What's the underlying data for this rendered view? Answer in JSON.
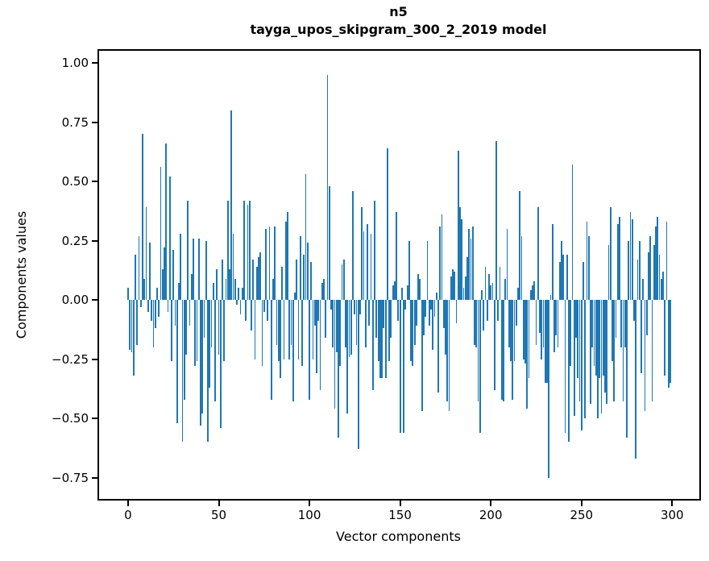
{
  "figure": {
    "title_line1": "n5",
    "title_line2": "tayga_upos_skipgram_300_2_2019 model",
    "xlabel": "Vector components",
    "ylabel": "Components values"
  },
  "chart_data": {
    "type": "bar",
    "title": "n5",
    "subtitle": "tayga_upos_skipgram_300_2_2019 model",
    "xlabel": "Vector components",
    "ylabel": "Components values",
    "bar_color": "#1f77b4",
    "axis_color": "#000000",
    "background_color": "#ffffff",
    "grid": false,
    "legend": "none",
    "xlim": [
      -15.95,
      314.95
    ],
    "ylim": [
      -0.84,
      1.051
    ],
    "x_ticks": [
      0,
      50,
      100,
      150,
      200,
      250,
      300
    ],
    "x_tick_labels": [
      "0",
      "50",
      "100",
      "150",
      "200",
      "250",
      "300"
    ],
    "y_ticks": [
      1.0,
      0.75,
      0.5,
      0.25,
      0.0,
      -0.25,
      -0.5,
      -0.75
    ],
    "y_tick_labels": [
      "1.00",
      "0.75",
      "0.50",
      "0.25",
      "0.00",
      "−0.25",
      "−0.50",
      "−0.75"
    ],
    "bar_rel_width": 0.8,
    "values": [
      0.05,
      -0.21,
      -0.22,
      -0.32,
      0.19,
      -0.19,
      0.27,
      -0.03,
      0.7,
      0.09,
      0.39,
      -0.05,
      0.24,
      -0.09,
      -0.2,
      -0.12,
      0.05,
      -0.07,
      0.56,
      0.13,
      0.22,
      0.66,
      -0.05,
      0.52,
      -0.26,
      0.21,
      -0.11,
      -0.52,
      0.07,
      0.28,
      -0.6,
      -0.42,
      -0.23,
      0.42,
      -0.11,
      0.11,
      0.26,
      -0.28,
      -0.26,
      0.26,
      -0.53,
      -0.48,
      -0.16,
      0.25,
      -0.6,
      -0.37,
      -0.2,
      0.07,
      -0.43,
      0.13,
      -0.23,
      -0.54,
      0.17,
      -0.26,
      0.09,
      0.42,
      0.13,
      0.8,
      0.28,
      0.09,
      -0.02,
      0.05,
      -0.06,
      0.05,
      0.42,
      -0.09,
      0.4,
      0.42,
      -0.13,
      0.17,
      -0.25,
      0.14,
      0.18,
      0.2,
      -0.28,
      -0.05,
      0.3,
      -0.09,
      0.31,
      -0.42,
      0.09,
      0.31,
      -0.19,
      -0.26,
      -0.33,
      0.14,
      -0.25,
      0.33,
      0.37,
      -0.25,
      -0.19,
      -0.43,
      0.03,
      0.17,
      -0.25,
      0.27,
      -0.28,
      0.19,
      0.53,
      0.24,
      -0.42,
      0.16,
      -0.25,
      -0.11,
      -0.31,
      -0.09,
      -0.38,
      0.07,
      0.09,
      -0.16,
      0.95,
      0.48,
      -0.04,
      -0.2,
      -0.46,
      -0.22,
      -0.58,
      -0.28,
      0.15,
      0.17,
      -0.2,
      -0.48,
      -0.24,
      -0.23,
      0.46,
      -0.06,
      -0.19,
      -0.63,
      -0.06,
      0.39,
      0.29,
      -0.2,
      0.32,
      -0.11,
      0.28,
      -0.38,
      0.42,
      -0.16,
      -0.26,
      -0.33,
      -0.33,
      -0.12,
      -0.33,
      0.64,
      -0.26,
      -0.16,
      0.06,
      0.08,
      0.37,
      -0.09,
      -0.56,
      0.05,
      -0.56,
      -0.04,
      0.06,
      0.25,
      -0.26,
      -0.28,
      -0.19,
      -0.11,
      0.11,
      0.09,
      -0.47,
      -0.15,
      -0.07,
      0.25,
      -0.11,
      -0.04,
      -0.21,
      -0.07,
      0.03,
      -0.39,
      0.31,
      0.36,
      -0.12,
      -0.23,
      -0.43,
      -0.47,
      0.1,
      0.13,
      0.12,
      -0.1,
      0.63,
      0.39,
      0.34,
      0.05,
      0.1,
      0.18,
      0.3,
      0.26,
      0.31,
      -0.19,
      -0.2,
      -0.43,
      -0.56,
      0.04,
      -0.13,
      0.14,
      -0.09,
      0.11,
      0.06,
      0.07,
      -0.38,
      0.67,
      -0.09,
      0.14,
      -0.42,
      -0.43,
      0.09,
      0.3,
      -0.2,
      -0.26,
      -0.42,
      -0.26,
      -0.11,
      0.05,
      0.46,
      0.27,
      -0.25,
      -0.27,
      -0.46,
      -0.33,
      0.04,
      0.06,
      0.08,
      -0.19,
      0.39,
      -0.14,
      -0.25,
      -0.2,
      -0.35,
      -0.35,
      -0.75,
      0.02,
      0.32,
      -0.22,
      -0.15,
      -0.2,
      0.16,
      0.25,
      0.19,
      -0.56,
      0.19,
      -0.6,
      -0.28,
      0.57,
      -0.49,
      -0.16,
      -0.33,
      -0.43,
      -0.55,
      0.16,
      -0.5,
      0.33,
      0.27,
      -0.44,
      -0.2,
      -0.28,
      -0.32,
      -0.5,
      -0.33,
      -0.48,
      -0.32,
      -0.39,
      -0.44,
      0.23,
      0.39,
      -0.26,
      -0.43,
      -0.16,
      0.32,
      0.35,
      -0.2,
      -0.43,
      -0.2,
      -0.58,
      0.25,
      0.37,
      0.34,
      -0.09,
      -0.67,
      0.17,
      0.25,
      -0.31,
      0.09,
      -0.47,
      -0.15,
      0.2,
      0.27,
      -0.43,
      0.23,
      0.31,
      0.35,
      0.19,
      0.09,
      0.12,
      -0.32,
      0.33,
      -0.37,
      -0.35
    ]
  }
}
